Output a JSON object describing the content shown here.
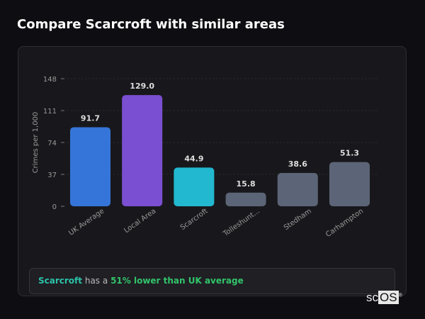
{
  "title": "Compare Scarcroft with similar areas",
  "chart_data": {
    "type": "bar",
    "ylabel": "Crimes per 1,000",
    "ylim": [
      0,
      148
    ],
    "yticks": [
      0,
      37,
      74,
      111,
      148
    ],
    "grid": true,
    "categories": [
      "UK Average",
      "Local Area",
      "Scarcroft",
      "Tolleshunt...",
      "Stedham",
      "Carhampton"
    ],
    "values": [
      91.7,
      129.0,
      44.9,
      15.8,
      38.6,
      51.3
    ],
    "data_labels": [
      "91.7",
      "129.0",
      "44.9",
      "15.8",
      "38.6",
      "51.3"
    ],
    "colors": [
      "#3575d9",
      "#7b4fd2",
      "#22b8cf",
      "#5c6577",
      "#5c6577",
      "#5c6577"
    ]
  },
  "insight": {
    "area": "Scarcroft",
    "middle": "has a",
    "comparison": "51% lower than UK average"
  },
  "logo": {
    "prefix": "sc",
    "suffix": "OS",
    "mark": "®"
  }
}
